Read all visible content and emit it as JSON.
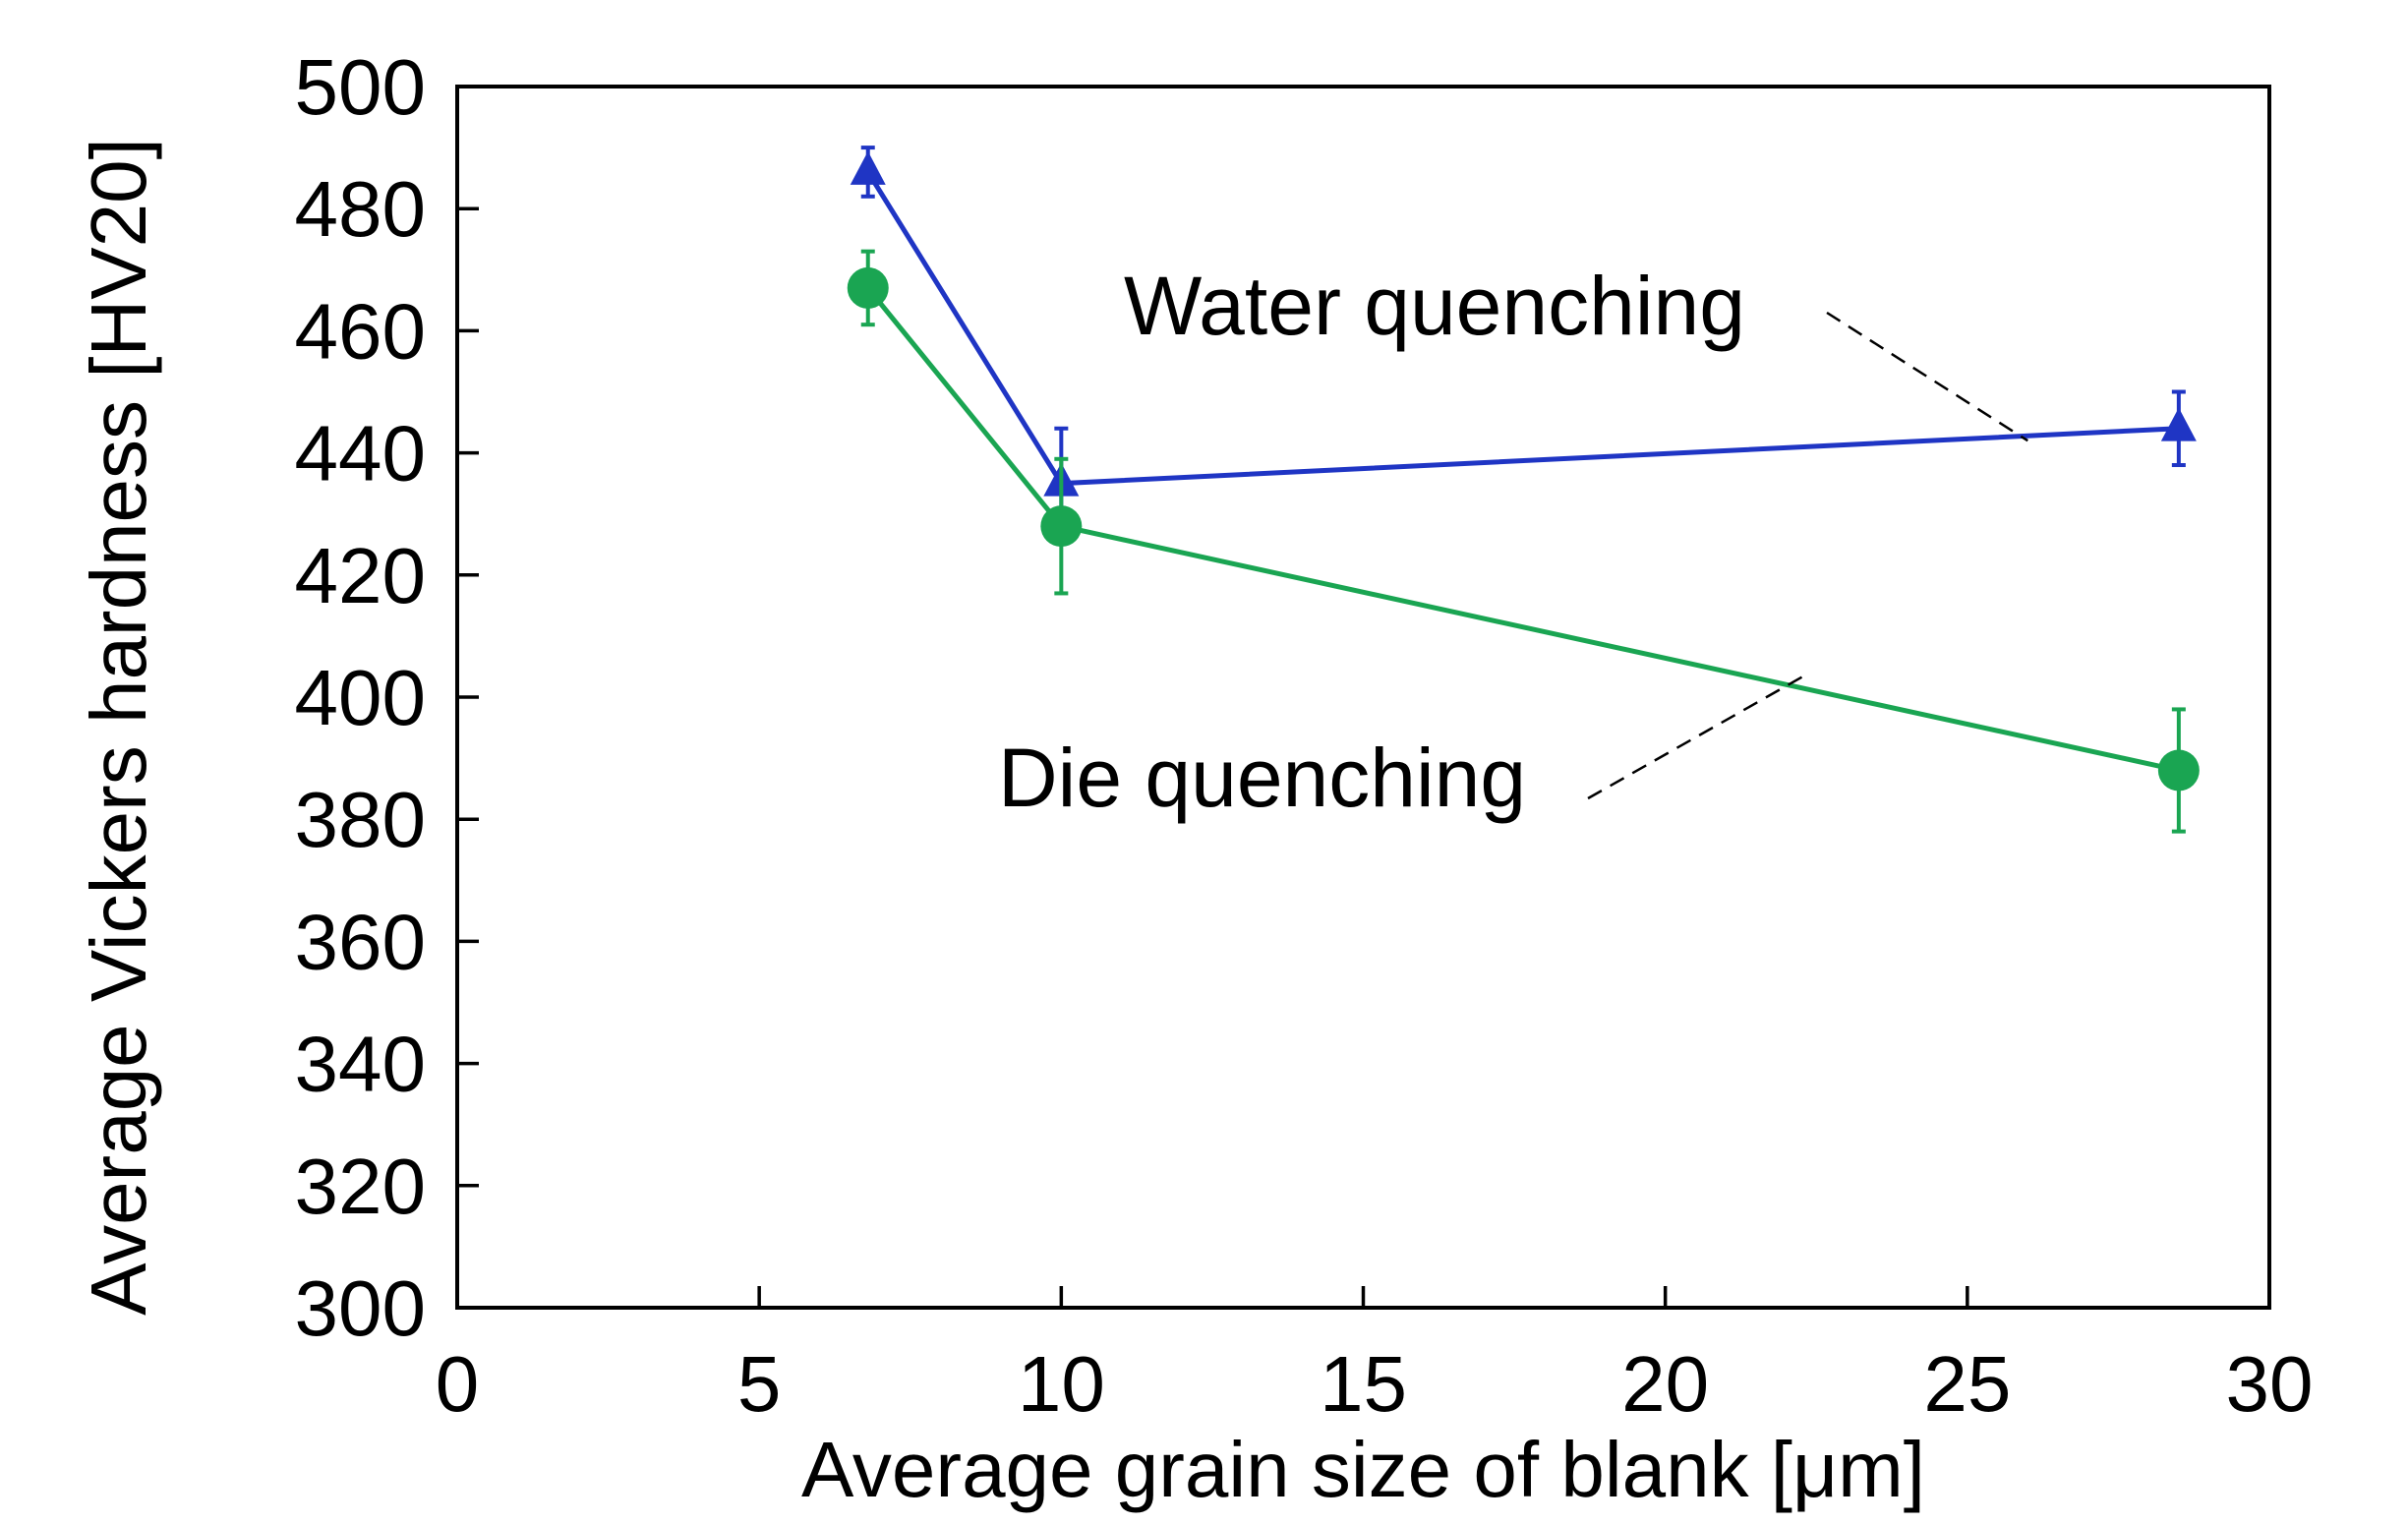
{
  "chart_data": {
    "type": "line",
    "title": "",
    "xlabel": "Average grain size of blank [μm]",
    "ylabel": "Average Vickers hardness [HV20]",
    "xlim": [
      0,
      30
    ],
    "ylim": [
      300,
      500
    ],
    "xticks": [
      0,
      5,
      10,
      15,
      20,
      25,
      30
    ],
    "yticks": [
      300,
      320,
      340,
      360,
      380,
      400,
      420,
      440,
      460,
      480,
      500
    ],
    "xtick_labels": [
      "0",
      "5",
      "10",
      "15",
      "20",
      "25",
      "30"
    ],
    "ytick_labels": [
      "300",
      "320",
      "340",
      "360",
      "380",
      "400",
      "420",
      "440",
      "460",
      "480",
      "500"
    ],
    "grid": false,
    "legend": "none (series identified by in-plot annotations)",
    "series": [
      {
        "name": "Water quenching",
        "marker": "triangle",
        "color": "#1f35c4",
        "x": [
          6.8,
          10,
          28.5
        ],
        "y": [
          486,
          435,
          444
        ],
        "err": [
          4,
          9,
          6
        ]
      },
      {
        "name": "Die quenching",
        "marker": "circle",
        "color": "#1aa552",
        "x": [
          6.8,
          10,
          28.5
        ],
        "y": [
          467,
          428,
          388
        ],
        "err": [
          6,
          11,
          10
        ]
      }
    ],
    "annotations": [
      {
        "text": "Water quenching",
        "series": "Water quenching",
        "points_to_x": 26,
        "points_to_y": 442
      },
      {
        "text": "Die quenching",
        "series": "Die quenching",
        "points_to_x": 22.3,
        "points_to_y": 403.5
      }
    ]
  }
}
